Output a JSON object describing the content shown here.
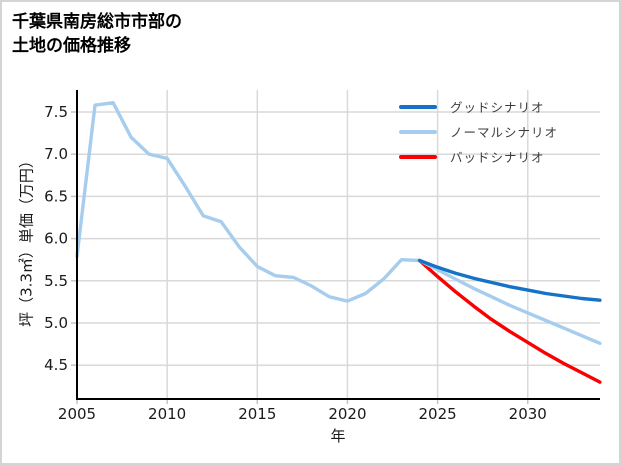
{
  "header": {
    "title_line1": "千葉県南房総市市部の",
    "title_line2": "土地の価格推移"
  },
  "axes": {
    "x_label": "年",
    "y_label": "坪（3.3㎡）単価（万円）"
  },
  "legend": {
    "items": [
      {
        "label": "グッドシナリオ",
        "color": "#1572c6"
      },
      {
        "label": "ノーマルシナリオ",
        "color": "#a6cdee"
      },
      {
        "label": "バッドシナリオ",
        "color": "#fa0000"
      }
    ]
  },
  "colors": {
    "grid": "#d9d9d9",
    "tick": "#c4c4c4",
    "spine": "#000000",
    "background": "#ffffff",
    "border": "#d4d4d4"
  },
  "chart_data": {
    "type": "line",
    "title": "千葉県南房総市市部の土地の価格推移",
    "xlabel": "年",
    "ylabel": "坪（3.3㎡）単価（万円）",
    "xlim": [
      2005,
      2034
    ],
    "ylim": [
      4.1,
      7.76
    ],
    "x_ticks": [
      2005,
      2010,
      2015,
      2020,
      2025,
      2030
    ],
    "y_ticks": [
      4.5,
      5.0,
      5.5,
      6.0,
      6.5,
      7.0,
      7.5
    ],
    "grid": true,
    "legend_position": "upper right",
    "series": [
      {
        "name": "historical",
        "color": "#a6cdee",
        "x": [
          2005,
          2006,
          2007,
          2008,
          2009,
          2010,
          2011,
          2012,
          2013,
          2014,
          2015,
          2016,
          2017,
          2018,
          2019,
          2020,
          2021,
          2022,
          2023,
          2024
        ],
        "values": [
          5.79,
          7.58,
          7.61,
          7.2,
          7.0,
          6.95,
          6.62,
          6.27,
          6.2,
          5.9,
          5.67,
          5.56,
          5.54,
          5.44,
          5.31,
          5.26,
          5.35,
          5.52,
          5.75,
          5.74
        ]
      },
      {
        "name": "バッドシナリオ",
        "color": "#fa0000",
        "x": [
          2024,
          2025,
          2026,
          2027,
          2028,
          2029,
          2030,
          2031,
          2032,
          2033,
          2034
        ],
        "values": [
          5.74,
          5.55,
          5.37,
          5.2,
          5.04,
          4.9,
          4.77,
          4.64,
          4.52,
          4.41,
          4.3
        ]
      },
      {
        "name": "ノーマルシナリオ",
        "color": "#a6cdee",
        "x": [
          2024,
          2025,
          2026,
          2027,
          2028,
          2029,
          2030,
          2031,
          2032,
          2033,
          2034
        ],
        "values": [
          5.74,
          5.63,
          5.52,
          5.41,
          5.31,
          5.21,
          5.12,
          5.03,
          4.94,
          4.85,
          4.76
        ]
      },
      {
        "name": "グッドシナリオ",
        "color": "#1572c6",
        "x": [
          2024,
          2025,
          2026,
          2027,
          2028,
          2029,
          2030,
          2031,
          2032,
          2033,
          2034
        ],
        "values": [
          5.74,
          5.66,
          5.59,
          5.53,
          5.48,
          5.43,
          5.39,
          5.35,
          5.32,
          5.29,
          5.27
        ]
      }
    ]
  }
}
